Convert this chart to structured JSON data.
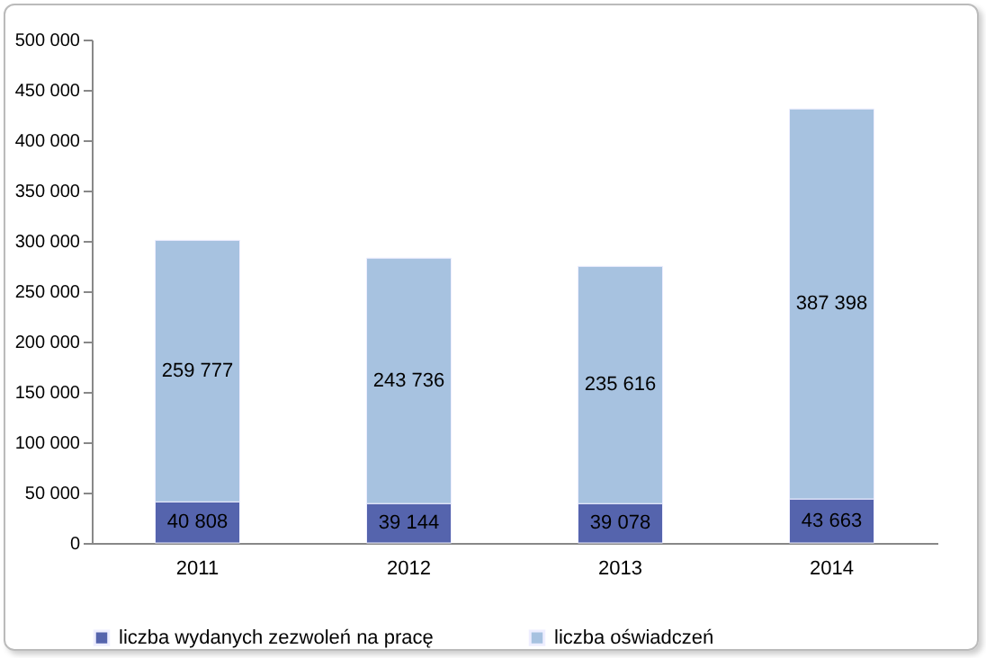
{
  "chart_data": {
    "type": "bar",
    "stacked": true,
    "categories": [
      "2011",
      "2012",
      "2013",
      "2014"
    ],
    "series": [
      {
        "name": "liczba wydanych zezwoleń na pracę",
        "color": "#5564ad",
        "values": [
          40808,
          39144,
          39078,
          43663
        ],
        "value_labels": [
          "40 808",
          "39 144",
          "39 078",
          "43 663"
        ]
      },
      {
        "name": "liczba oświadczeń",
        "color": "#a7c2e0",
        "values": [
          259777,
          243736,
          235616,
          387398
        ],
        "value_labels": [
          "259 777",
          "243 736",
          "235 616",
          "387 398"
        ]
      }
    ],
    "ylim": [
      0,
      500000
    ],
    "yticks": [
      0,
      {
        "value": 50000,
        "label": "50 000"
      },
      {
        "value": 100000,
        "label": "100 000"
      },
      {
        "value": 150000,
        "label": "150 000"
      },
      {
        "value": 200000,
        "label": "200 000"
      },
      {
        "value": 250000,
        "label": "250 000"
      },
      {
        "value": 300000,
        "label": "300 000"
      },
      {
        "value": 350000,
        "label": "350 000"
      },
      {
        "value": 400000,
        "label": "400 000"
      },
      {
        "value": 450000,
        "label": "450 000"
      },
      {
        "value": 500000,
        "label": "500 000"
      }
    ],
    "grid": false,
    "legend": "bottom"
  }
}
